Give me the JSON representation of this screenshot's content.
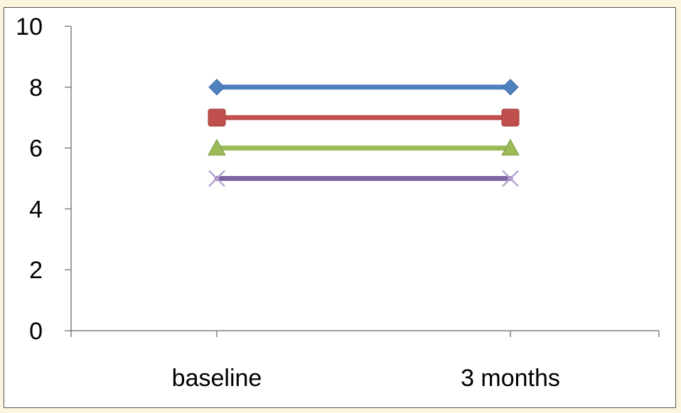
{
  "colors": {
    "page_background": "#faf5dc",
    "plot_background": "#ffffff",
    "axis": "#808080"
  },
  "chart_data": {
    "type": "line",
    "title": "",
    "xlabel": "",
    "ylabel": "",
    "categories": [
      "baseline",
      "3 months"
    ],
    "ylim": [
      0,
      10
    ],
    "yticks": [
      0,
      2,
      4,
      6,
      8,
      10
    ],
    "ytick_labels": [
      "0",
      "2",
      "4",
      "6",
      "8",
      "10"
    ],
    "grid": false,
    "legend": "none",
    "series": [
      {
        "values": [
          8,
          8
        ],
        "color": "#4f81bd",
        "marker": "diamond"
      },
      {
        "values": [
          7,
          7
        ],
        "color": "#c0504d",
        "marker": "square"
      },
      {
        "values": [
          6,
          6
        ],
        "color": "#9bbb59",
        "marker": "triangle"
      },
      {
        "values": [
          5,
          5
        ],
        "color": "#8064a2",
        "marker": "x"
      }
    ]
  }
}
